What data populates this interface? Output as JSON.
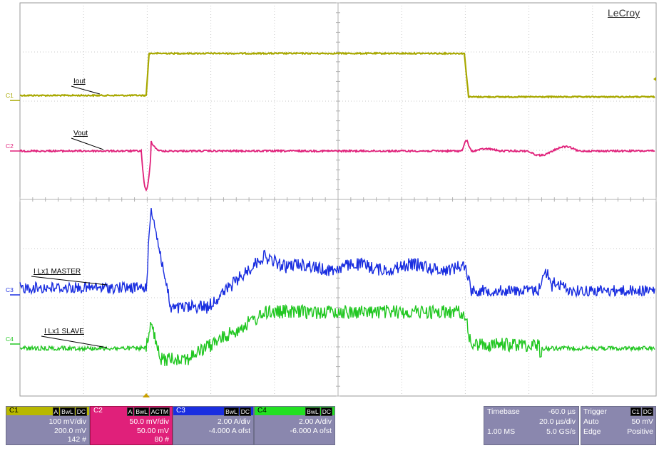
{
  "brand": "LeCroy",
  "chart_data": {
    "type": "line",
    "title": "",
    "grid": true,
    "grid_divisions": {
      "x": 10,
      "y": 8
    },
    "series": [
      {
        "name": "Iout",
        "channel": "C1",
        "color": "#a8a800"
      },
      {
        "name": "Vout",
        "channel": "C2",
        "color": "#e0207a"
      },
      {
        "name": "I Lx1 MASTER",
        "channel": "C3",
        "color": "#1a2ee0"
      },
      {
        "name": "I Lx1 SLAVE",
        "channel": "C4",
        "color": "#22c722"
      }
    ],
    "waveform_labels": [
      "Iout",
      "Vout",
      "I Lx1 MASTER",
      "I Lx1 SLAVE"
    ],
    "markers": [
      "C1",
      "C2",
      "C3",
      "C4"
    ]
  },
  "channels": [
    {
      "name": "C1",
      "flags": [
        "A",
        "BwL",
        "DC"
      ],
      "scale": "100 mV/div",
      "offset": "200.0 mV",
      "sweeps": "142 #",
      "header_color": "#b8b800"
    },
    {
      "name": "C2",
      "flags": [
        "A",
        "BwL",
        "ACTM"
      ],
      "scale": "50.0 mV/div",
      "offset": "50.00 mV",
      "sweeps": "80 #",
      "header_color": "#e0207a"
    },
    {
      "name": "C3",
      "flags": [
        "BwL",
        "DC"
      ],
      "scale": "2.00 A/div",
      "offset": "-4.000 A ofst",
      "sweeps": "",
      "header_color": "#1a2ee0"
    },
    {
      "name": "C4",
      "flags": [
        "BwL",
        "DC"
      ],
      "scale": "2.00 A/div",
      "offset": "-6.000 A ofst",
      "sweeps": "",
      "header_color": "#22e022"
    }
  ],
  "timebase": {
    "label": "Timebase",
    "delay": "-60.0 µs",
    "scale": "20.0 µs/div",
    "samples": "1.00 MS",
    "rate": "5.0 GS/s"
  },
  "trigger": {
    "label": "Trigger",
    "source": "C1",
    "coupling": "DC",
    "mode": "Auto",
    "level": "50 mV",
    "type": "Edge",
    "slope": "Positive"
  }
}
